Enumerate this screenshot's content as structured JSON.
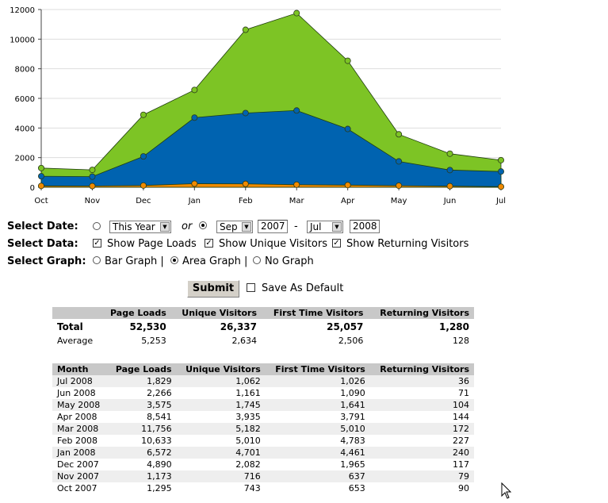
{
  "chart_data": {
    "type": "area",
    "categories": [
      "Oct",
      "Nov",
      "Dec",
      "Jan",
      "Feb",
      "Mar",
      "Apr",
      "May",
      "Jun",
      "Jul"
    ],
    "ylim": [
      0,
      12000
    ],
    "yticks": [
      0,
      2000,
      4000,
      6000,
      8000,
      10000,
      12000
    ],
    "series": [
      {
        "name": "Page Loads",
        "color": "#7dc425",
        "values": [
          1295,
          1173,
          4890,
          6572,
          10633,
          11756,
          8541,
          3575,
          2266,
          1829
        ]
      },
      {
        "name": "Unique Visitors",
        "color": "#0063b0",
        "values": [
          743,
          716,
          2082,
          4701,
          5010,
          5182,
          3935,
          1745,
          1161,
          1062
        ]
      },
      {
        "name": "Returning Visitors",
        "color": "#f08a00",
        "values": [
          90,
          79,
          117,
          240,
          227,
          172,
          144,
          104,
          71,
          36
        ]
      }
    ]
  },
  "controls": {
    "select_date_label": "Select Date:",
    "preset_value": "This Year",
    "or_label": "or",
    "from_month": "Sep",
    "from_year": "2007",
    "dash": "-",
    "to_month": "Jul",
    "to_year": "2008",
    "select_data_label": "Select Data:",
    "show_page_loads": "Show Page Loads",
    "show_unique": "Show Unique Visitors",
    "show_returning": "Show Returning Visitors",
    "select_graph_label": "Select Graph:",
    "bar_graph": "Bar Graph |",
    "area_graph": "Area Graph |",
    "no_graph": "No Graph",
    "submit": "Submit",
    "save_default": "Save As Default"
  },
  "totals": {
    "headers": [
      "",
      "Page Loads",
      "Unique Visitors",
      "First Time Visitors",
      "Returning Visitors"
    ],
    "total": {
      "label": "Total",
      "page_loads": "52,530",
      "unique": "26,337",
      "first": "25,057",
      "returning": "1,280"
    },
    "average": {
      "label": "Average",
      "page_loads": "5,253",
      "unique": "2,634",
      "first": "2,506",
      "returning": "128"
    }
  },
  "monthly": {
    "headers": [
      "Month",
      "Page Loads",
      "Unique Visitors",
      "First Time Visitors",
      "Returning Visitors"
    ],
    "rows": [
      {
        "month": "Jul 2008",
        "page_loads": "1,829",
        "unique": "1,062",
        "first": "1,026",
        "returning": "36"
      },
      {
        "month": "Jun 2008",
        "page_loads": "2,266",
        "unique": "1,161",
        "first": "1,090",
        "returning": "71"
      },
      {
        "month": "May 2008",
        "page_loads": "3,575",
        "unique": "1,745",
        "first": "1,641",
        "returning": "104"
      },
      {
        "month": "Apr 2008",
        "page_loads": "8,541",
        "unique": "3,935",
        "first": "3,791",
        "returning": "144"
      },
      {
        "month": "Mar 2008",
        "page_loads": "11,756",
        "unique": "5,182",
        "first": "5,010",
        "returning": "172"
      },
      {
        "month": "Feb 2008",
        "page_loads": "10,633",
        "unique": "5,010",
        "first": "4,783",
        "returning": "227"
      },
      {
        "month": "Jan 2008",
        "page_loads": "6,572",
        "unique": "4,701",
        "first": "4,461",
        "returning": "240"
      },
      {
        "month": "Dec 2007",
        "page_loads": "4,890",
        "unique": "2,082",
        "first": "1,965",
        "returning": "117"
      },
      {
        "month": "Nov 2007",
        "page_loads": "1,173",
        "unique": "716",
        "first": "637",
        "returning": "79"
      },
      {
        "month": "Oct 2007",
        "page_loads": "1,295",
        "unique": "743",
        "first": "653",
        "returning": "90"
      }
    ]
  }
}
